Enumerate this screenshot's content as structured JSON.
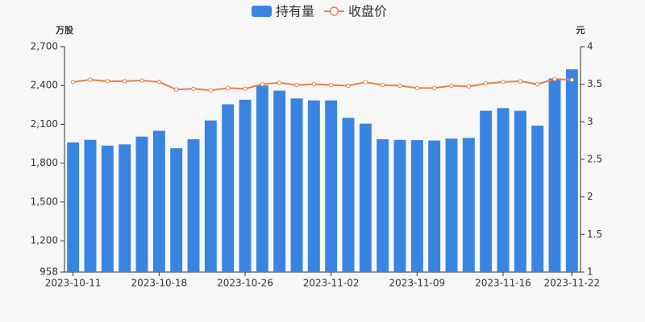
{
  "chart_data": {
    "type": "bar-line",
    "legend_position": "top",
    "y_unit_label": "万股",
    "y2_unit_label": "元",
    "categories": [
      "2023-10-11",
      null,
      null,
      null,
      null,
      "2023-10-18",
      null,
      null,
      null,
      null,
      "2023-10-26",
      null,
      null,
      null,
      null,
      "2023-11-02",
      null,
      null,
      null,
      null,
      "2023-11-09",
      null,
      null,
      null,
      null,
      "2023-11-16",
      null,
      null,
      null,
      "2023-11-22"
    ],
    "series": [
      {
        "name": "持有量",
        "type": "bar",
        "color": "#3a84e1",
        "values": [
          1960,
          1980,
          1935,
          1945,
          2005,
          2050,
          1915,
          1985,
          2130,
          2255,
          2290,
          2400,
          2360,
          2300,
          2285,
          2285,
          2150,
          2105,
          1985,
          1980,
          1978,
          1975,
          1990,
          1995,
          2205,
          2225,
          2205,
          2090,
          2455,
          2525
        ]
      },
      {
        "name": "收盘价",
        "type": "line",
        "axis": "y2",
        "color": "#e8804a",
        "values": [
          3.53,
          3.56,
          3.54,
          3.54,
          3.55,
          3.53,
          3.43,
          3.44,
          3.42,
          3.45,
          3.44,
          3.5,
          3.52,
          3.49,
          3.5,
          3.49,
          3.48,
          3.53,
          3.49,
          3.48,
          3.45,
          3.45,
          3.48,
          3.47,
          3.51,
          3.53,
          3.54,
          3.5,
          3.57,
          3.56
        ]
      }
    ],
    "ylim": [
      958,
      2700
    ],
    "yticks": [
      958,
      {
        "value": 1200,
        "label": "1,200"
      },
      {
        "value": 1500,
        "label": "1,500"
      },
      {
        "value": 1800,
        "label": "1,800"
      },
      {
        "value": 2100,
        "label": "2,100"
      },
      {
        "value": 2400,
        "label": "2,400"
      },
      {
        "value": 2700,
        "label": "2,700"
      }
    ],
    "y2lim": [
      1,
      4
    ],
    "y2ticks": [
      1,
      1.5,
      2,
      2.5,
      3,
      3.5,
      4
    ]
  }
}
